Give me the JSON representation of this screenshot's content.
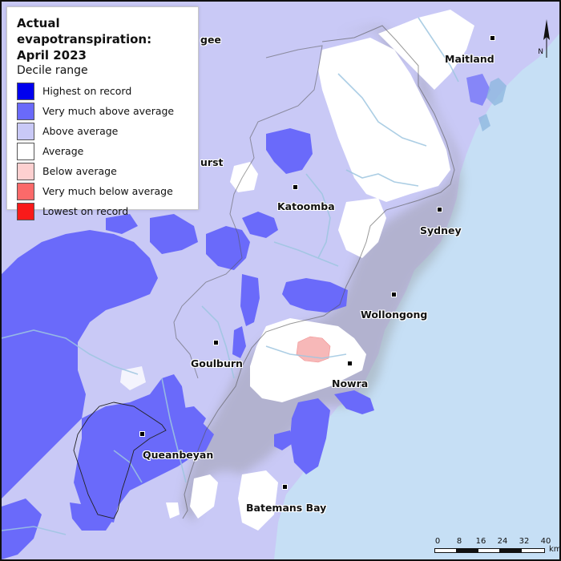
{
  "legend": {
    "title_line1": "Actual evapotranspiration:",
    "title_line2": "April 2023",
    "subtitle": "Decile range",
    "items": [
      {
        "label": "Highest on record",
        "color": "#0000ee"
      },
      {
        "label": "Very much above average",
        "color": "#6a6afa"
      },
      {
        "label": "Above average",
        "color": "#c9c9f6"
      },
      {
        "label": "Average",
        "color": "#ffffff"
      },
      {
        "label": "Below average",
        "color": "#fdd0d0"
      },
      {
        "label": "Very much below average",
        "color": "#fb6a6a"
      },
      {
        "label": "Lowest on record",
        "color": "#f91a1a"
      }
    ]
  },
  "places": {
    "maitland": "Maitland",
    "katoomba": "Katoomba",
    "sydney": "Sydney",
    "wollongong": "Wollongong",
    "goulburn": "Goulburn",
    "nowra": "Nowra",
    "queanbeyan": "Queanbeyan",
    "batemans_bay": "Batemans Bay",
    "partial_gee": "gee",
    "partial_urst": "urst"
  },
  "scale": {
    "ticks": [
      "0",
      "8",
      "16",
      "24",
      "32",
      "40"
    ],
    "unit": "km"
  },
  "north_label": "N",
  "colors": {
    "ocean": "#c6dff5",
    "above_average": "#c9c9f6",
    "very_much_above": "#6a6afa",
    "average": "#ffffff",
    "below_average": "#fdd0d0",
    "rivers": "#9ec6e0"
  }
}
